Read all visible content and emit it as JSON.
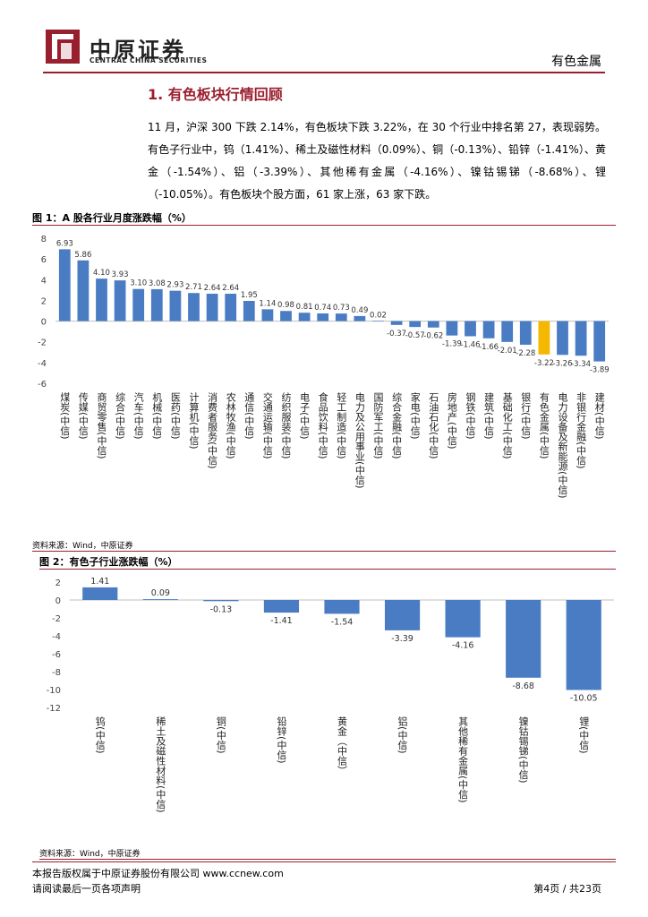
{
  "header": {
    "logo_cn": "中原证券",
    "logo_en": "CENTRAL CHINA SECURITIES",
    "right_label": "有色金属"
  },
  "section": {
    "title": "1. 有色板块行情回顾",
    "paragraph": "11 月，沪深 300 下跌 2.14%，有色板块下跌 3.22%，在 30 个行业中排名第 27，表现弱势。有色子行业中，钨（1.41%）、稀土及磁性材料（0.09%）、铜（-0.13%）、铅锌（-1.41%）、黄金（-1.54%）、铝（-3.39%）、其他稀有金属（-4.16%）、镍钴锡锑（-8.68%）、锂（-10.05%）。有色板块个股方面，61 家上涨，63 家下跌。"
  },
  "figure1": {
    "title": "图 1：A 股各行业月度涨跌幅（%）",
    "source": "资料来源：Wind，中原证券"
  },
  "figure2": {
    "title": "图 2：有色子行业涨跌幅（%）",
    "source": "资料来源：Wind，中原证券"
  },
  "footer": {
    "line1": "本报告版权属于中原证券股份有限公司    www.ccnew.com",
    "line2": "请阅读最后一页各项声明",
    "page": "第4页 / 共23页"
  },
  "colors": {
    "brand": "#9a1f2e",
    "bar": "#4a7cc4",
    "highlight": "#f5b800",
    "axis": "#bfbfbf"
  },
  "chart_data": [
    {
      "type": "bar",
      "categories": [
        "煤炭(中信)",
        "传媒(中信)",
        "商贸零售(中信)",
        "综合(中信)",
        "汽车(中信)",
        "机械(中信)",
        "医药(中信)",
        "计算机(中信)",
        "消费者服务(中信)",
        "农林牧渔(中信)",
        "通信(中信)",
        "交通运输(中信)",
        "纺织服装(中信)",
        "电子(中信)",
        "食品饮料(中信)",
        "轻工制造(中信)",
        "电力及公用事业(中信)",
        "国防军工(中信)",
        "综合金融(中信)",
        "家电(中信)",
        "石油石化(中信)",
        "房地产(中信)",
        "钢铁(中信)",
        "建筑(中信)",
        "基础化工(中信)",
        "银行(中信)",
        "有色金属(中信)",
        "电力设备及新能源(中信)",
        "非银行金融(中信)",
        "建材(中信)"
      ],
      "values": [
        6.93,
        5.86,
        4.1,
        3.93,
        3.1,
        3.08,
        2.93,
        2.71,
        2.64,
        2.64,
        1.95,
        1.14,
        0.98,
        0.81,
        0.74,
        0.73,
        0.49,
        0.02,
        -0.37,
        -0.57,
        -0.62,
        -1.39,
        -1.46,
        -1.66,
        -2.01,
        -2.28,
        -3.22,
        -3.26,
        -3.34,
        -3.89
      ],
      "labels": [
        "6.93",
        "5.86",
        "4.10",
        "3.93",
        "3.10",
        "3.08",
        "2.93",
        "2.71",
        "2.64",
        "2.64",
        "1.95",
        "1.14",
        "0.98",
        "0.81",
        "0.74",
        "0.73",
        "0.49",
        "0.02",
        "-0.37",
        "-0.57",
        "-0.62",
        "-1.39",
        "-1.46",
        "-1.66",
        "-2.01",
        "-2.28",
        "-3.22",
        "-3.26",
        "-3.34",
        "-3.89"
      ],
      "highlight_index": 26,
      "ylim": [
        -6,
        8
      ],
      "yticks": [
        "8",
        "6",
        "4",
        "2",
        "0",
        "-2",
        "-4",
        "-6"
      ],
      "grid": false
    },
    {
      "type": "bar",
      "categories": [
        "钨(中信)",
        "稀土及磁性材料(中信)",
        "铜(中信)",
        "铅锌(中信)",
        "黄金（中信）",
        "铝(中信)",
        "其他稀有金属(中信)",
        "镍钴锡锑(中信)",
        "锂(中信)"
      ],
      "values": [
        1.41,
        0.09,
        -0.13,
        -1.41,
        -1.54,
        -3.39,
        -4.16,
        -8.68,
        -10.05
      ],
      "labels": [
        "1.41",
        "0.09",
        "-0.13",
        "-1.41",
        "-1.54",
        "-3.39",
        "-4.16",
        "-8.68",
        "-10.05"
      ],
      "ylim": [
        -12,
        2
      ],
      "yticks": [
        "2",
        "0",
        "-2",
        "-4",
        "-6",
        "-8",
        "-10",
        "-12"
      ],
      "grid": false
    }
  ]
}
